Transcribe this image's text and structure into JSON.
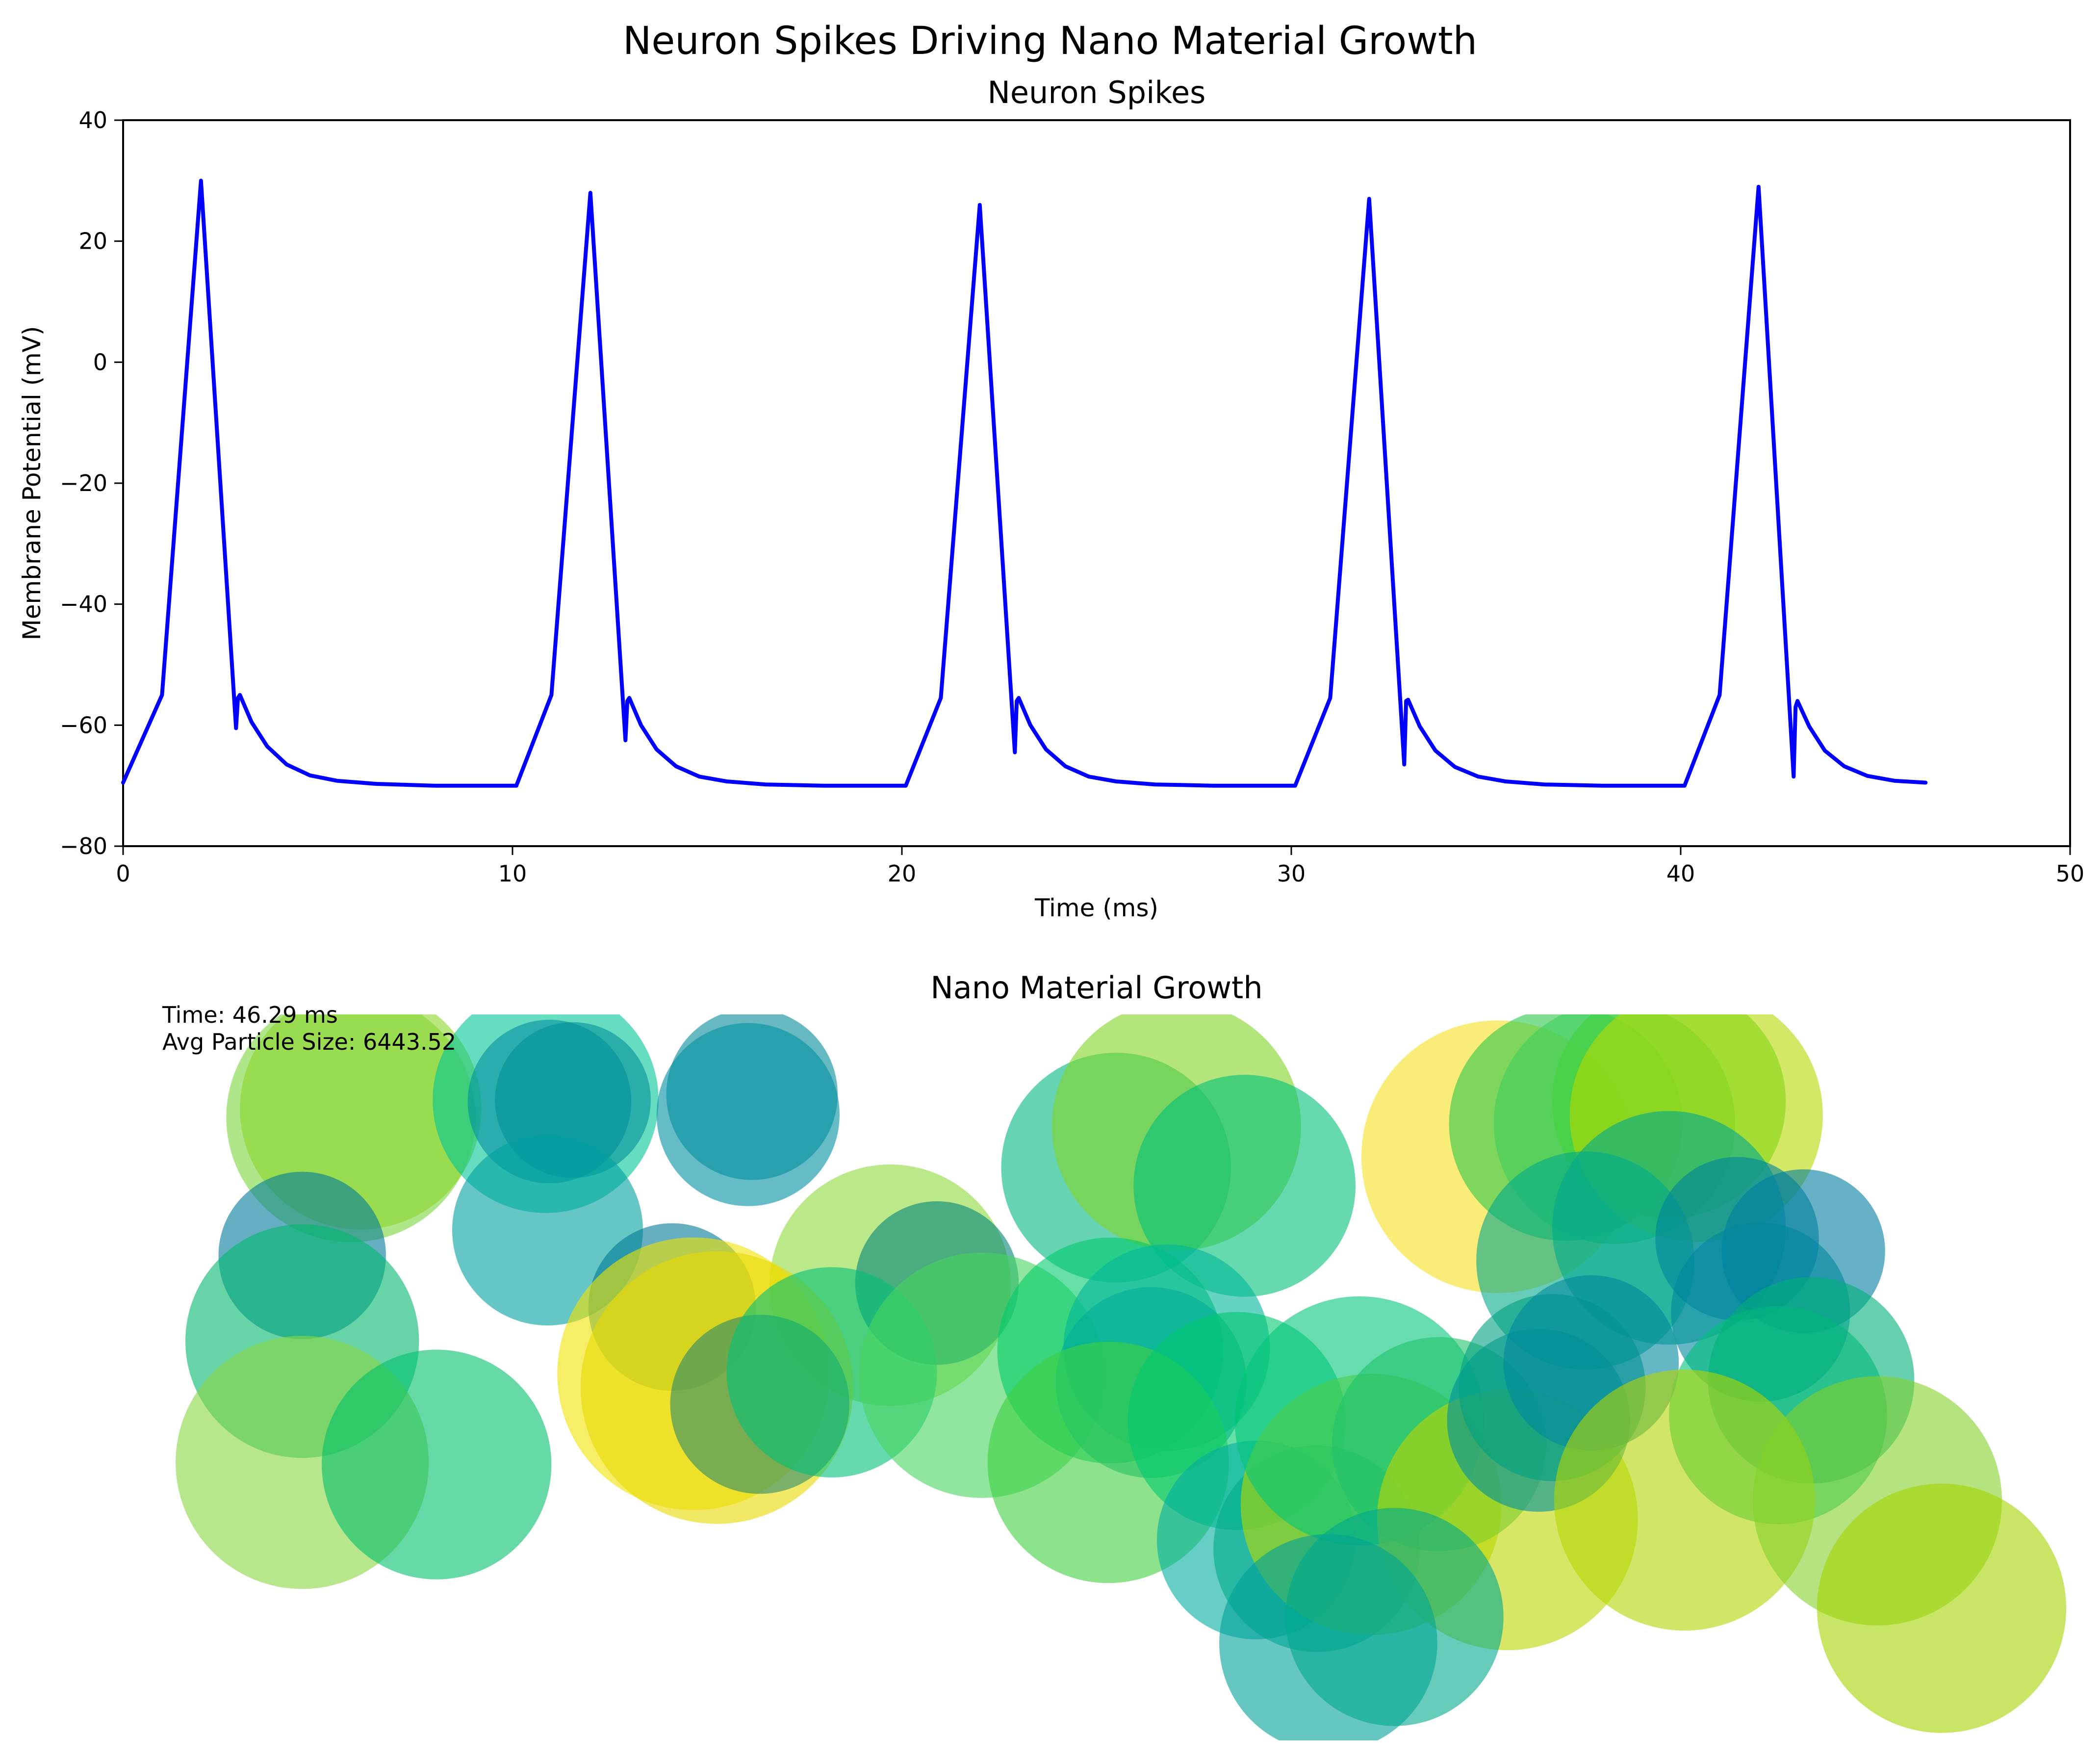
{
  "figure": {
    "suptitle": "Neuron Spikes Driving Nano Material Growth"
  },
  "chart_data": [
    {
      "type": "line",
      "title": "Neuron Spikes",
      "xlabel": "Time (ms)",
      "ylabel": "Membrane Potential (mV)",
      "xlim": [
        0,
        50
      ],
      "ylim": [
        -80,
        40
      ],
      "xticks": [
        0,
        10,
        20,
        30,
        40,
        50
      ],
      "xtick_labels": [
        "0",
        "10",
        "20",
        "30",
        "40",
        "50"
      ],
      "yticks": [
        40,
        20,
        0,
        -20,
        -40,
        -60,
        -80
      ],
      "ytick_labels": [
        "40",
        "20",
        "0",
        "−20",
        "−40",
        "−60",
        "−80"
      ],
      "line_color": "#0000ff",
      "series": [
        {
          "name": "membrane potential",
          "x": [
            0,
            1,
            2,
            2.9,
            2.95,
            3.0,
            3.3,
            3.7,
            4.2,
            4.8,
            5.5,
            6.5,
            8,
            10,
            10.1,
            11,
            12,
            12.9,
            12.95,
            13.0,
            13.3,
            13.7,
            14.2,
            14.8,
            15.5,
            16.5,
            18,
            20,
            20.1,
            21,
            22,
            22.9,
            22.95,
            23.0,
            23.3,
            23.7,
            24.2,
            24.8,
            25.5,
            26.5,
            28,
            30,
            30.1,
            31,
            32,
            32.9,
            32.95,
            33.0,
            33.3,
            33.7,
            34.2,
            34.8,
            35.5,
            36.5,
            38,
            40,
            40.1,
            41,
            42,
            42.9,
            42.95,
            43.0,
            43.3,
            43.7,
            44.2,
            44.8,
            45.5,
            46.29
          ],
          "y": [
            -69.5,
            -55,
            30,
            -60.5,
            -55.5,
            -55,
            -59.5,
            -63.5,
            -66.5,
            -68.3,
            -69.2,
            -69.7,
            -70,
            -70,
            -70,
            -55,
            28,
            -62.5,
            -56,
            -55.5,
            -60,
            -64,
            -66.8,
            -68.5,
            -69.3,
            -69.8,
            -70,
            -70,
            -70,
            -55.5,
            26,
            -64.5,
            -56,
            -55.5,
            -60,
            -64,
            -66.8,
            -68.5,
            -69.3,
            -69.8,
            -70,
            -70,
            -70,
            -55.5,
            27,
            -66.5,
            -56,
            -55.8,
            -60.2,
            -64.2,
            -66.9,
            -68.5,
            -69.3,
            -69.8,
            -70,
            -70,
            -70,
            -55,
            29,
            -68.5,
            -57,
            -56,
            -60.2,
            -64.2,
            -66.8,
            -68.4,
            -69.2,
            -69.5
          ]
        }
      ]
    },
    {
      "type": "scatter",
      "title": "Nano Material Growth",
      "axes_visible": false,
      "xlim": [
        0,
        100
      ],
      "ylim": [
        0,
        100
      ],
      "colormap": "viridis-like (teal, green, yellow)",
      "alpha": 0.6,
      "annotations": {
        "time": "Time: 46.29 ms",
        "avg_size": "Avg Particle Size: 6443.52"
      },
      "particles": [
        {
          "x": 11.7,
          "y": 85.8,
          "r": 6.4,
          "color": "#7ad53c"
        },
        {
          "x": 12.2,
          "y": 87.0,
          "r": 6.2,
          "color": "#8bd629"
        },
        {
          "x": 21.7,
          "y": 88.2,
          "r": 5.8,
          "color": "#00c496"
        },
        {
          "x": 21.9,
          "y": 88.0,
          "r": 4.2,
          "color": "#008fa0"
        },
        {
          "x": 23.1,
          "y": 88.2,
          "r": 4.0,
          "color": "#008f9a"
        },
        {
          "x": 32.3,
          "y": 89.0,
          "r": 4.4,
          "color": "#008b98"
        },
        {
          "x": 32.1,
          "y": 86.2,
          "r": 4.7,
          "color": "#008fa0"
        },
        {
          "x": 21.8,
          "y": 70.3,
          "r": 4.9,
          "color": "#00a0a0"
        },
        {
          "x": 9.2,
          "y": 66.8,
          "r": 4.3,
          "color": "#007a9a"
        },
        {
          "x": 28.2,
          "y": 59.7,
          "r": 4.3,
          "color": "#007a96"
        },
        {
          "x": 39.4,
          "y": 62.7,
          "r": 6.2,
          "color": "#8ed83a"
        },
        {
          "x": 41.8,
          "y": 63.0,
          "r": 4.2,
          "color": "#00837a"
        },
        {
          "x": 29.3,
          "y": 50.5,
          "r": 7.0,
          "color": "#f0e200"
        },
        {
          "x": 30.5,
          "y": 48.6,
          "r": 7.0,
          "color": "#e8d800"
        },
        {
          "x": 32.7,
          "y": 46.3,
          "r": 4.6,
          "color": "#2c8a6a"
        },
        {
          "x": 36.4,
          "y": 50.7,
          "r": 5.4,
          "color": "#00bf78"
        },
        {
          "x": 44.1,
          "y": 50.3,
          "r": 6.3,
          "color": "#46d65e"
        },
        {
          "x": 9.2,
          "y": 55.0,
          "r": 6.0,
          "color": "#00b86c"
        },
        {
          "x": 9.2,
          "y": 38.3,
          "r": 6.5,
          "color": "#88d641"
        },
        {
          "x": 16.1,
          "y": 38.0,
          "r": 5.9,
          "color": "#00bf6a"
        },
        {
          "x": 51.0,
          "y": 78.9,
          "r": 5.9,
          "color": "#00b880"
        },
        {
          "x": 54.1,
          "y": 84.6,
          "r": 6.4,
          "color": "#82d425"
        },
        {
          "x": 57.6,
          "y": 76.4,
          "r": 5.7,
          "color": "#00c07a"
        },
        {
          "x": 50.7,
          "y": 53.7,
          "r": 5.8,
          "color": "#00c96a"
        },
        {
          "x": 53.6,
          "y": 54.1,
          "r": 5.3,
          "color": "#00b599"
        },
        {
          "x": 52.8,
          "y": 49.3,
          "r": 4.9,
          "color": "#00ae98"
        },
        {
          "x": 50.6,
          "y": 38.3,
          "r": 6.2,
          "color": "#3fd13f"
        },
        {
          "x": 57.2,
          "y": 44.0,
          "r": 5.6,
          "color": "#00c86e"
        },
        {
          "x": 58.2,
          "y": 27.6,
          "r": 5.1,
          "color": "#00ada0"
        },
        {
          "x": 61.3,
          "y": 26.4,
          "r": 5.3,
          "color": "#00ab8c"
        },
        {
          "x": 64.1,
          "y": 32.5,
          "r": 6.7,
          "color": "#b6d800"
        },
        {
          "x": 63.5,
          "y": 44.0,
          "r": 6.4,
          "color": "#00c57a"
        },
        {
          "x": 67.6,
          "y": 40.8,
          "r": 5.5,
          "color": "#1ec26a"
        },
        {
          "x": 71.1,
          "y": 30.4,
          "r": 6.7,
          "color": "#bcd600"
        },
        {
          "x": 70.6,
          "y": 80.4,
          "r": 7.0,
          "color": "#f7e020"
        },
        {
          "x": 74.1,
          "y": 84.9,
          "r": 6.0,
          "color": "#2cc84a"
        },
        {
          "x": 76.6,
          "y": 85.0,
          "r": 6.2,
          "color": "#3ecd5a"
        },
        {
          "x": 79.4,
          "y": 88.0,
          "r": 6.0,
          "color": "#40d03a"
        },
        {
          "x": 80.8,
          "y": 86.1,
          "r": 6.5,
          "color": "#b6d800"
        },
        {
          "x": 79.4,
          "y": 70.6,
          "r": 6.0,
          "color": "#00a890"
        },
        {
          "x": 75.1,
          "y": 66.1,
          "r": 5.6,
          "color": "#00a98a"
        },
        {
          "x": 82.9,
          "y": 69.1,
          "r": 4.2,
          "color": "#00839b"
        },
        {
          "x": 86.3,
          "y": 67.4,
          "r": 4.2,
          "color": "#007da0"
        },
        {
          "x": 84.1,
          "y": 59.0,
          "r": 4.6,
          "color": "#00859e"
        },
        {
          "x": 72.7,
          "y": 44.1,
          "r": 4.7,
          "color": "#00909c"
        },
        {
          "x": 73.4,
          "y": 48.6,
          "r": 4.8,
          "color": "#00a082"
        },
        {
          "x": 75.4,
          "y": 52.0,
          "r": 4.5,
          "color": "#00879c"
        },
        {
          "x": 85.0,
          "y": 44.8,
          "r": 5.6,
          "color": "#00c07a"
        },
        {
          "x": 86.7,
          "y": 49.6,
          "r": 5.3,
          "color": "#00b078"
        },
        {
          "x": 80.2,
          "y": 33.1,
          "r": 6.7,
          "color": "#b2d600"
        },
        {
          "x": 90.1,
          "y": 33.0,
          "r": 6.4,
          "color": "#82d029"
        },
        {
          "x": 93.4,
          "y": 18.2,
          "r": 6.4,
          "color": "#a5d400"
        },
        {
          "x": 61.9,
          "y": 13.4,
          "r": 5.6,
          "color": "#00a09a"
        },
        {
          "x": 65.3,
          "y": 17.0,
          "r": 5.6,
          "color": "#00a88e"
        }
      ]
    }
  ]
}
